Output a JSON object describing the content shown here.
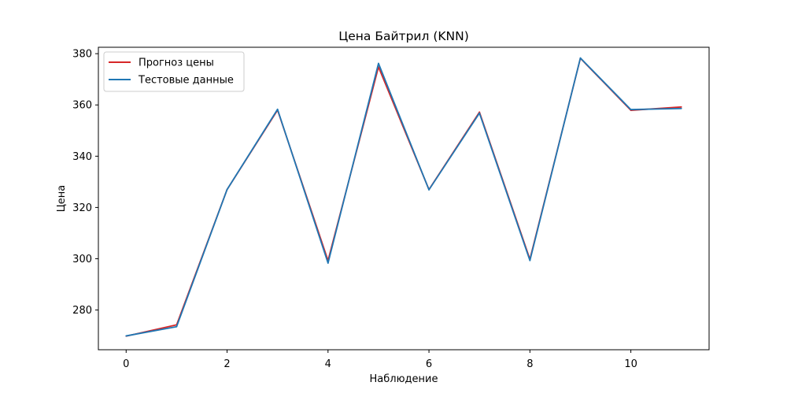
{
  "chart_data": {
    "type": "line",
    "title": "Цена Байтрил  (KNN)",
    "xlabel": "Наблюдение",
    "ylabel": "Цена",
    "x": [
      0,
      1,
      2,
      3,
      4,
      5,
      6,
      7,
      8,
      9,
      10,
      11
    ],
    "xlim": [
      -0.55,
      11.55
    ],
    "ylim": [
      264.5,
      382.5
    ],
    "xticks": [
      0,
      2,
      4,
      6,
      8,
      10
    ],
    "yticks": [
      280,
      300,
      320,
      340,
      360,
      380
    ],
    "grid": false,
    "legend_position": "upper-left",
    "series": [
      {
        "name": "Прогноз цены",
        "color": "#d62728",
        "values": [
          269.8,
          274.2,
          327.0,
          358.0,
          299.3,
          374.8,
          327.0,
          357.2,
          299.8,
          378.2,
          357.9,
          359.2
        ]
      },
      {
        "name": "Тестовые данные",
        "color": "#1f77b4",
        "values": [
          269.9,
          273.5,
          327.0,
          358.3,
          298.3,
          376.2,
          326.9,
          356.8,
          299.3,
          378.3,
          358.2,
          358.6
        ]
      }
    ]
  }
}
